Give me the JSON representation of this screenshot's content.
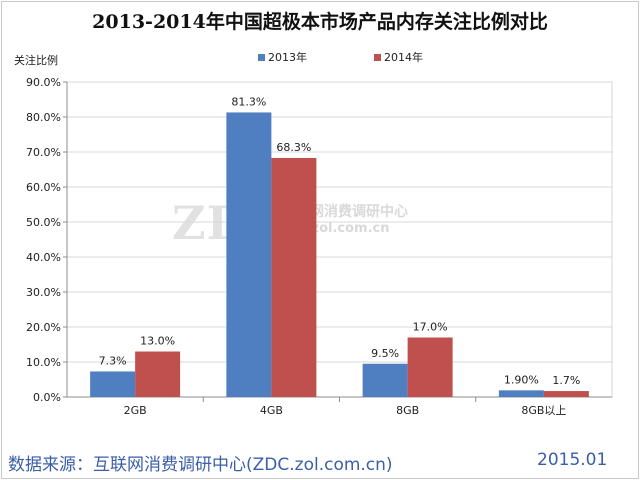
{
  "chart_data": {
    "type": "bar",
    "title": "2013-2014年中国超极本市场产品内存关注比例对比",
    "ylabel": "关注比例",
    "xlabel": "",
    "categories": [
      "2GB",
      "4GB",
      "8GB",
      "8GB以上"
    ],
    "series": [
      {
        "name": "2013年",
        "values": [
          7.3,
          81.3,
          9.5,
          1.9
        ],
        "labels": [
          "7.3%",
          "81.3%",
          "9.5%",
          "1.90%"
        ],
        "color": "#4f7fc0"
      },
      {
        "name": "2014年",
        "values": [
          13.0,
          68.3,
          17.0,
          1.7
        ],
        "labels": [
          "13.0%",
          "68.3%",
          "17.0%",
          "1.7%"
        ],
        "color": "#c0504d"
      }
    ],
    "ylim": [
      0,
      90
    ],
    "yticks": [
      "0.0%",
      "10.0%",
      "20.0%",
      "30.0%",
      "40.0%",
      "50.0%",
      "60.0%",
      "70.0%",
      "80.0%",
      "90.0%"
    ],
    "grid": true,
    "legend": "top-center"
  },
  "footer": {
    "source": "数据来源：互联网消费调研中心(ZDC.zol.com.cn)",
    "date": "2015.01"
  },
  "watermark": {
    "logo": "ZDC",
    "name": "互联网消费调研中心",
    "url": "zdc.zol.com.cn"
  }
}
